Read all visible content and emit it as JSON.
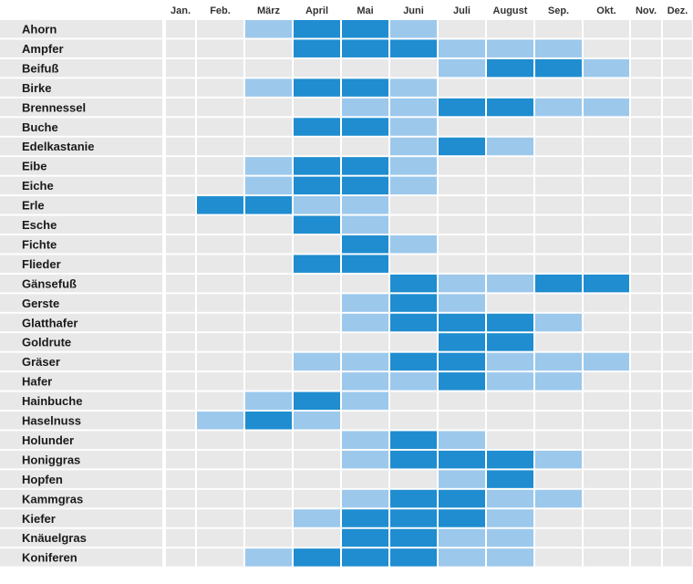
{
  "chart_data": {
    "type": "heatmap",
    "title": "",
    "xlabel": "",
    "ylabel": "",
    "months": [
      "Jan.",
      "Feb.",
      "März",
      "April",
      "Mai",
      "Juni",
      "Juli",
      "August",
      "Sep.",
      "Okt.",
      "Nov.",
      "Dez."
    ],
    "levels": {
      "0": "none",
      "1": "light",
      "2": "strong"
    },
    "colors": {
      "row_bg": "#e8e8e8",
      "level_1": "#9cc8ec",
      "level_2": "#1f8dd0",
      "grid": "#ffffff"
    },
    "plants": [
      {
        "name": "Ahorn",
        "values": [
          0,
          0,
          1,
          2,
          2,
          1,
          0,
          0,
          0,
          0,
          0,
          0
        ]
      },
      {
        "name": "Ampfer",
        "values": [
          0,
          0,
          0,
          2,
          2,
          2,
          1,
          1,
          1,
          0,
          0,
          0
        ]
      },
      {
        "name": "Beifuß",
        "values": [
          0,
          0,
          0,
          0,
          0,
          0,
          1,
          2,
          2,
          1,
          0,
          0
        ]
      },
      {
        "name": "Birke",
        "values": [
          0,
          0,
          1,
          2,
          2,
          1,
          0,
          0,
          0,
          0,
          0,
          0
        ]
      },
      {
        "name": "Brennessel",
        "values": [
          0,
          0,
          0,
          0,
          1,
          1,
          2,
          2,
          1,
          1,
          0,
          0
        ]
      },
      {
        "name": "Buche",
        "values": [
          0,
          0,
          0,
          2,
          2,
          1,
          0,
          0,
          0,
          0,
          0,
          0
        ]
      },
      {
        "name": "Edelkastanie",
        "values": [
          0,
          0,
          0,
          0,
          0,
          1,
          2,
          1,
          0,
          0,
          0,
          0
        ]
      },
      {
        "name": "Eibe",
        "values": [
          0,
          0,
          1,
          2,
          2,
          1,
          0,
          0,
          0,
          0,
          0,
          0
        ]
      },
      {
        "name": "Eiche",
        "values": [
          0,
          0,
          1,
          2,
          2,
          1,
          0,
          0,
          0,
          0,
          0,
          0
        ]
      },
      {
        "name": "Erle",
        "values": [
          0,
          2,
          2,
          1,
          1,
          0,
          0,
          0,
          0,
          0,
          0,
          0
        ]
      },
      {
        "name": "Esche",
        "values": [
          0,
          0,
          0,
          2,
          1,
          0,
          0,
          0,
          0,
          0,
          0,
          0
        ]
      },
      {
        "name": "Fichte",
        "values": [
          0,
          0,
          0,
          0,
          2,
          1,
          0,
          0,
          0,
          0,
          0,
          0
        ]
      },
      {
        "name": "Flieder",
        "values": [
          0,
          0,
          0,
          2,
          2,
          0,
          0,
          0,
          0,
          0,
          0,
          0
        ]
      },
      {
        "name": "Gänsefuß",
        "values": [
          0,
          0,
          0,
          0,
          0,
          2,
          1,
          1,
          2,
          2,
          0,
          0
        ]
      },
      {
        "name": "Gerste",
        "values": [
          0,
          0,
          0,
          0,
          1,
          2,
          1,
          0,
          0,
          0,
          0,
          0
        ]
      },
      {
        "name": "Glatthafer",
        "values": [
          0,
          0,
          0,
          0,
          1,
          2,
          2,
          2,
          1,
          0,
          0,
          0
        ]
      },
      {
        "name": "Goldrute",
        "values": [
          0,
          0,
          0,
          0,
          0,
          0,
          2,
          2,
          0,
          0,
          0,
          0
        ]
      },
      {
        "name": "Gräser",
        "values": [
          0,
          0,
          0,
          1,
          1,
          2,
          2,
          1,
          1,
          1,
          0,
          0
        ]
      },
      {
        "name": "Hafer",
        "values": [
          0,
          0,
          0,
          0,
          1,
          1,
          2,
          1,
          1,
          0,
          0,
          0
        ]
      },
      {
        "name": "Hainbuche",
        "values": [
          0,
          0,
          1,
          2,
          1,
          0,
          0,
          0,
          0,
          0,
          0,
          0
        ]
      },
      {
        "name": "Haselnuss",
        "values": [
          0,
          1,
          2,
          1,
          0,
          0,
          0,
          0,
          0,
          0,
          0,
          0
        ]
      },
      {
        "name": "Holunder",
        "values": [
          0,
          0,
          0,
          0,
          1,
          2,
          1,
          0,
          0,
          0,
          0,
          0
        ]
      },
      {
        "name": "Honiggras",
        "values": [
          0,
          0,
          0,
          0,
          1,
          2,
          2,
          2,
          1,
          0,
          0,
          0
        ]
      },
      {
        "name": "Hopfen",
        "values": [
          0,
          0,
          0,
          0,
          0,
          0,
          1,
          2,
          0,
          0,
          0,
          0
        ]
      },
      {
        "name": "Kammgras",
        "values": [
          0,
          0,
          0,
          0,
          1,
          2,
          2,
          1,
          1,
          0,
          0,
          0
        ]
      },
      {
        "name": "Kiefer",
        "values": [
          0,
          0,
          0,
          1,
          2,
          2,
          2,
          1,
          0,
          0,
          0,
          0
        ]
      },
      {
        "name": "Knäuelgras",
        "values": [
          0,
          0,
          0,
          0,
          2,
          2,
          1,
          1,
          0,
          0,
          0,
          0
        ]
      },
      {
        "name": "Koniferen",
        "values": [
          0,
          0,
          1,
          2,
          2,
          2,
          1,
          1,
          0,
          0,
          0,
          0
        ]
      }
    ]
  }
}
